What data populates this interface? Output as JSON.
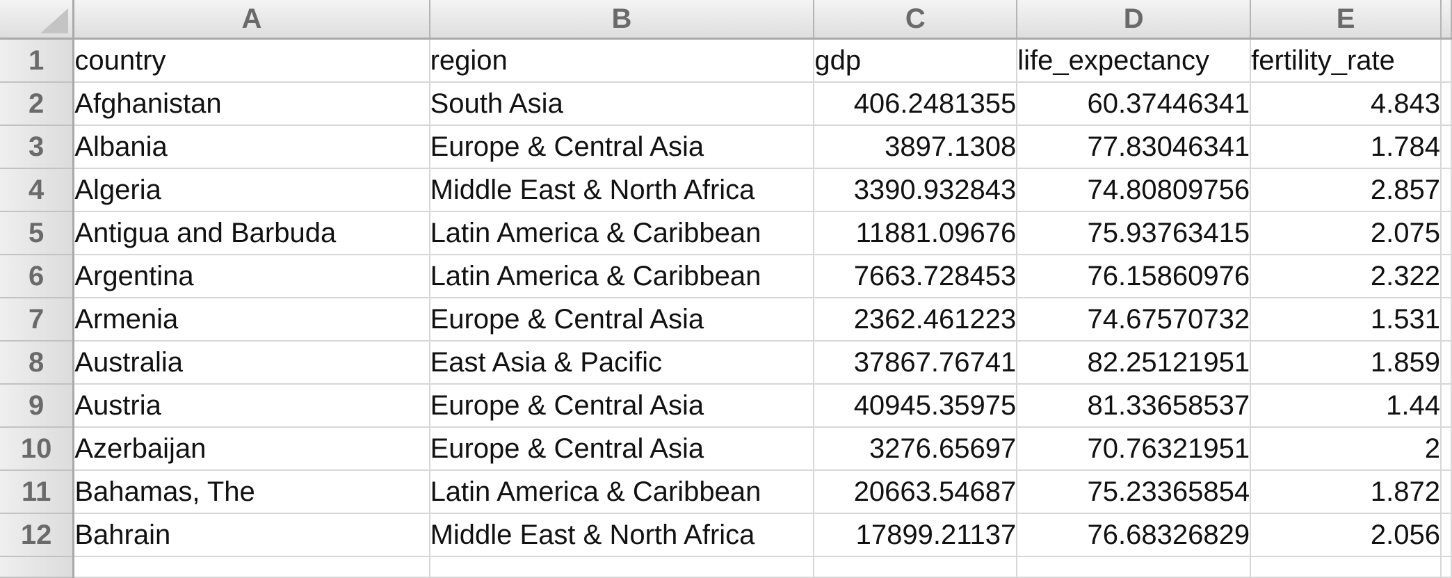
{
  "columns": [
    "A",
    "B",
    "C",
    "D",
    "E"
  ],
  "header_row": {
    "row_number": "1",
    "cells": [
      "country",
      "region",
      "gdp",
      "life_expectancy",
      "fertility_rate"
    ]
  },
  "rows": [
    {
      "row_number": "2",
      "country": "Afghanistan",
      "region": "South Asia",
      "gdp": "406.2481355",
      "life_expectancy": "60.37446341",
      "fertility_rate": "4.843"
    },
    {
      "row_number": "3",
      "country": "Albania",
      "region": "Europe & Central Asia",
      "gdp": "3897.1308",
      "life_expectancy": "77.83046341",
      "fertility_rate": "1.784"
    },
    {
      "row_number": "4",
      "country": "Algeria",
      "region": "Middle East & North Africa",
      "gdp": "3390.932843",
      "life_expectancy": "74.80809756",
      "fertility_rate": "2.857"
    },
    {
      "row_number": "5",
      "country": "Antigua and Barbuda",
      "region": "Latin America & Caribbean",
      "gdp": "11881.09676",
      "life_expectancy": "75.93763415",
      "fertility_rate": "2.075"
    },
    {
      "row_number": "6",
      "country": "Argentina",
      "region": "Latin America & Caribbean",
      "gdp": "7663.728453",
      "life_expectancy": "76.15860976",
      "fertility_rate": "2.322"
    },
    {
      "row_number": "7",
      "country": "Armenia",
      "region": "Europe & Central Asia",
      "gdp": "2362.461223",
      "life_expectancy": "74.67570732",
      "fertility_rate": "1.531"
    },
    {
      "row_number": "8",
      "country": "Australia",
      "region": "East Asia & Pacific",
      "gdp": "37867.76741",
      "life_expectancy": "82.25121951",
      "fertility_rate": "1.859"
    },
    {
      "row_number": "9",
      "country": "Austria",
      "region": "Europe & Central Asia",
      "gdp": "40945.35975",
      "life_expectancy": "81.33658537",
      "fertility_rate": "1.44"
    },
    {
      "row_number": "10",
      "country": "Azerbaijan",
      "region": "Europe & Central Asia",
      "gdp": "3276.65697",
      "life_expectancy": "70.76321951",
      "fertility_rate": "2"
    },
    {
      "row_number": "11",
      "country": "Bahamas, The",
      "region": "Latin America & Caribbean",
      "gdp": "20663.54687",
      "life_expectancy": "75.23365854",
      "fertility_rate": "1.872"
    },
    {
      "row_number": "12",
      "country": "Bahrain",
      "region": "Middle East & North Africa",
      "gdp": "17899.21137",
      "life_expectancy": "76.68326829",
      "fertility_rate": "2.056"
    }
  ]
}
